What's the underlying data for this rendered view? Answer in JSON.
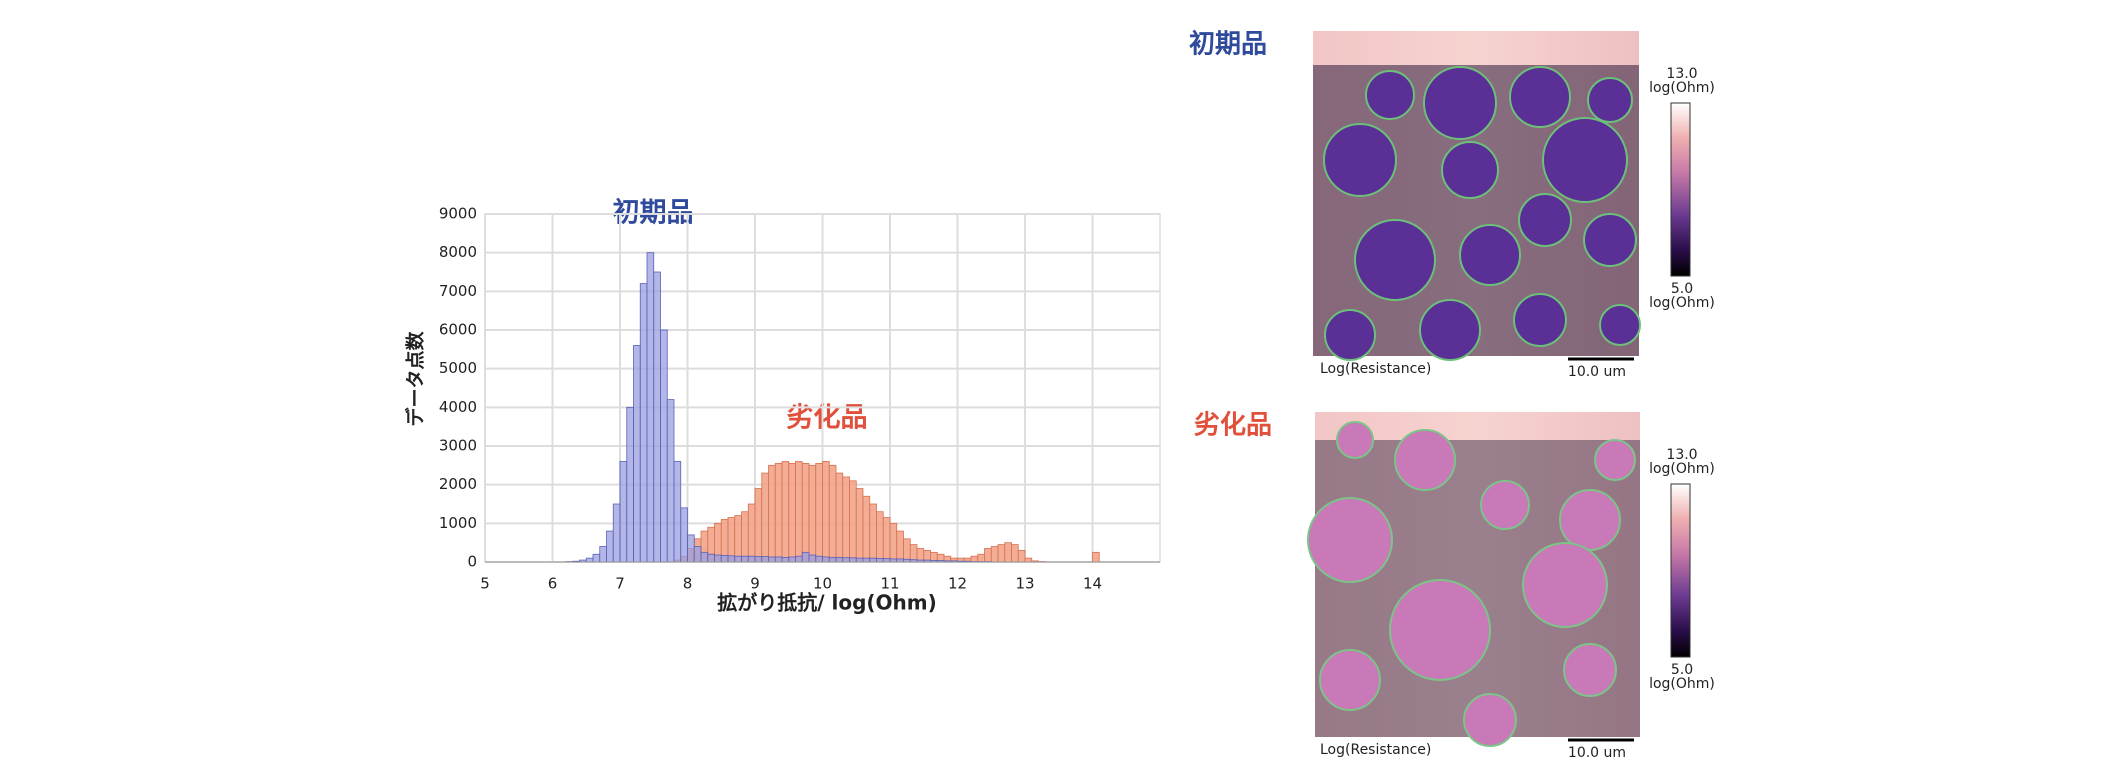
{
  "chart_data": {
    "type": "histogram",
    "x_label": "拡がり抵抗/ log(Ohm)",
    "y_label": "データ点数",
    "bins": [
      6,
      6.1,
      6.2,
      6.3,
      6.4,
      6.5,
      6.6,
      6.7,
      6.8,
      6.9,
      7,
      7.1,
      7.2,
      7.3,
      7.4,
      7.5,
      7.6,
      7.7,
      7.8,
      7.9,
      8,
      8.1,
      8.2,
      8.3,
      8.4,
      8.5,
      8.6,
      8.7,
      8.8,
      8.9,
      9,
      9.1,
      9.2,
      9.3,
      9.4,
      9.5,
      9.6,
      9.7,
      9.8,
      9.9,
      10,
      10.1,
      10.2,
      10.3,
      10.4,
      10.5,
      10.6,
      10.7,
      10.8,
      10.9,
      11,
      11.1,
      11.2,
      11.3,
      11.4,
      11.5,
      11.6,
      11.7,
      11.8,
      11.9,
      12,
      12.1,
      12.2,
      12.3,
      12.4,
      12.5,
      12.6,
      12.7,
      12.8,
      12.9,
      13,
      13.1,
      13.2,
      13.3,
      13.4,
      13.5,
      13.6,
      13.7,
      13.8,
      13.9,
      14,
      14.1,
      14.2
    ],
    "series": [
      {
        "name": "劣化品",
        "color": "#f2a48a",
        "edge": "#d9704f",
        "label_color": "#e0503a",
        "values": [
          0,
          0,
          0,
          0,
          0,
          0,
          0,
          0,
          0,
          0,
          0,
          0,
          0,
          0,
          0,
          0,
          0,
          0,
          50,
          150,
          350,
          600,
          800,
          900,
          1000,
          1100,
          1150,
          1200,
          1300,
          1500,
          1900,
          2300,
          2500,
          2550,
          2600,
          2550,
          2600,
          2550,
          2500,
          2550,
          2600,
          2500,
          2300,
          2200,
          2100,
          1900,
          1700,
          1500,
          1300,
          1150,
          1000,
          800,
          600,
          450,
          350,
          300,
          250,
          200,
          150,
          100,
          100,
          100,
          150,
          200,
          350,
          400,
          450,
          500,
          450,
          300,
          100,
          30,
          10,
          0,
          0,
          0,
          0,
          0,
          0,
          0,
          250,
          0
        ]
      },
      {
        "name": "初期品",
        "color": "#9a9fe0",
        "edge": "#5a60b8",
        "label_color": "#2f4a9c",
        "values": [
          0,
          0,
          10,
          20,
          50,
          100,
          200,
          400,
          800,
          1500,
          2600,
          4000,
          5600,
          7200,
          8000,
          7500,
          6000,
          4200,
          2600,
          1400,
          700,
          400,
          250,
          200,
          180,
          170,
          160,
          150,
          150,
          150,
          140,
          140,
          130,
          130,
          120,
          130,
          150,
          250,
          180,
          150,
          130,
          120,
          120,
          110,
          110,
          100,
          100,
          100,
          90,
          90,
          80,
          80,
          70,
          60,
          50,
          50,
          40,
          40,
          30,
          30,
          20,
          20,
          10,
          10,
          10,
          0,
          0,
          0,
          0,
          0,
          0,
          0,
          0,
          0,
          0,
          0,
          0,
          0,
          0,
          0,
          0,
          0
        ]
      }
    ],
    "xlim": [
      5,
      15
    ],
    "xticks": [
      5,
      6,
      7,
      8,
      9,
      10,
      11,
      12,
      13,
      14
    ],
    "ylim": [
      0,
      9000
    ],
    "yticks": [
      0,
      1000,
      2000,
      3000,
      4000,
      5000,
      6000,
      7000,
      8000,
      9000
    ],
    "grid": true
  },
  "panels": [
    {
      "label": "初期品",
      "max": "13.0",
      "max_unit": "log(Ohm)",
      "min": "5.0",
      "min_unit": "log(Ohm)",
      "caption": "Log(Resistance)",
      "scale": "10.0 um"
    },
    {
      "label": "劣化品",
      "max": "13.0",
      "max_unit": "log(Ohm)",
      "min": "5.0",
      "min_unit": "log(Ohm)",
      "caption": "Log(Resistance)",
      "scale": "10.0 um"
    }
  ]
}
